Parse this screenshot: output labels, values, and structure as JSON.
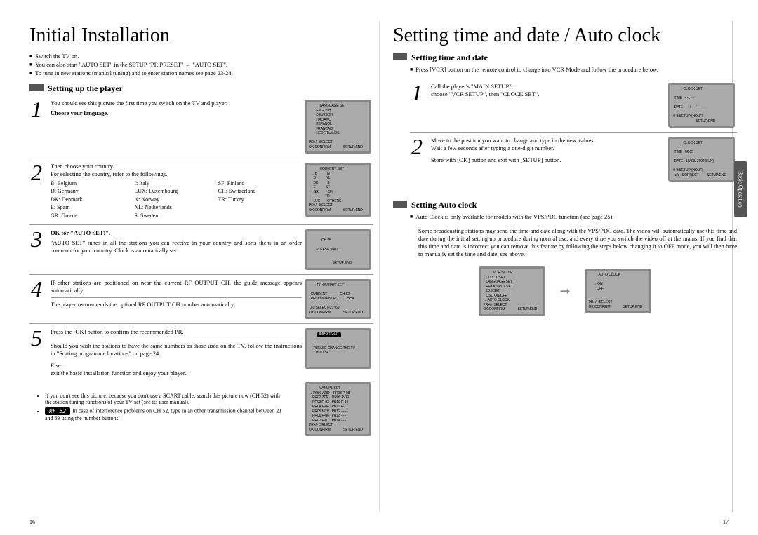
{
  "left": {
    "title": "Initial Installation",
    "bullets": [
      "Switch the TV on.",
      "You can also start \"AUTO SET\" in the SETUP \"PR PRESET\"  →  \"AUTO SET\".",
      "To tune in new stations (manual tuning) and to enter station names see page 23-24."
    ],
    "section": "Setting up the player",
    "steps": [
      {
        "num": "1",
        "body": "You should see this picture the first time you switch on the TV and player.",
        "bold": "Choose your language.",
        "screen": "            LANGUAGE SET\n        ENGLISH\n        DEUTSCH\n        ITALIANO\n        ESPANOL\n        FRANÇAIS\n        NEDERLANDS\n\nPR+/- :SELECT\nOK:CONFIRM              SETUP:END"
      },
      {
        "num": "2",
        "body": "Then choose your country.\nFor selecting the country, refer to the followings.",
        "countries": {
          "c1": [
            "B: Belgium",
            "D: Germany",
            "DK: Denmark",
            "E: Spain",
            "GR: Greece"
          ],
          "c2": [
            "I: Italy",
            "LUX: Luxembourg",
            "N: Norway",
            "NL: Netherlands",
            "S: Sweden"
          ],
          "c3": [
            "SF: Finland",
            "CH: Switzerland",
            "TR: Turkey"
          ]
        },
        "screen": "            COUNTRY SET\n  → B           N\n     D           NL\n     DK          S\n     E           SF\n     GR          CH\n     I            TR\n     LUX        OTHERS\nPR+/- :SELECT\nOK:CONFIRM              SETUP:END"
      },
      {
        "num": "3",
        "bold": "OK for \"AUTO SET!\".",
        "body": "\"AUTO SET\" tunes in all the stations you can receive in your country and sorts them in an order common for your country. Clock is automatically set.",
        "screen": "\n              CH 25\n\n        PLEASE WAIT...\n\n\n                          SETUP:END"
      },
      {
        "num": "4",
        "body": "If other stations are positioned on near the current RF OUTPUT CH, the guide message appears automatically.",
        "body2": "The player recommends the optimal RF OUTPUT CH number automatically.",
        "screen": "         RF OUTPUT SET\n\n  CURRENT              CH 52\n  RECOMMENDED       CH 54\n\n 0-9:SELECT(21~69)\nOK:CONFIRM              SETUP:END"
      },
      {
        "num": "5",
        "body": "Press the [OK] button to confirm the recommended PR.",
        "body2": "Should you wish the stations to have the same numbers as those used on the TV, follow the instructions in \"Sorting programme locations\" on page 24.",
        "body3": "Else ...\nexit the basic installation function and enjoy your player.",
        "screen_has_badge": true,
        "screen": "\n\n     PLEASE CHANGE THE TV\n     CH TO 54.\n\n"
      }
    ],
    "extra_screen": "           MANUAL SET\n→ PR01 ARD    PR08 P-08\n    PR02 ZDF    PR09 P-09\n    PR03 P-03   PR10 P-10\n    PR04 P-04   PR11 P-11\n    PR05 MTV   PR12 - - -\n    PR06 P-06   PR13 - - -\n    PR07 P-07   PR14 - - -\nPR+/- :SELECT\nOK:CONFIRM              SETUP:END",
    "notes": {
      "n1": "If you don't see this picture, because you don't use a SCART cable, search this picture now (CH 52) with the station tuning functions of your TV set (see its user manual).",
      "rf": "RF 52",
      "n2": "In case of interference problems on CH 52, type in an other transmission channel between 21 and 69 using the number buttons."
    },
    "page_num": "16"
  },
  "right": {
    "title": "Setting time and date / Auto clock",
    "sec1": "Setting time and date",
    "b1": "Press [VCR] button on the remote control to change into VCR Mode and follow the procedure below.",
    "steps": [
      {
        "num": "1",
        "body": "Call the player's \"MAIN SETUP\",\nchoose \"VCR SETUP\", then \"CLOCK SET\".",
        "screen": "            CLOCK SET\n\n  TIME   - - : - -\n\n  DATE   - - / - - / - - - -\n\n 0-9:SETUP (HOUR)\n                          SETUP:END"
      },
      {
        "num": "2",
        "body": "Move to the position you want to change and type in the new values.\nWait a few seconds after typing a one-digit number.",
        "body2": "Store with [OK] button and exit with [SETUP] button.",
        "screen": "            CLOCK SET\n\n  TIME   06:05\n\n  DATE   10/ 03/ 2002(SUN)\n\n 0-9:SETUP (HOUR)\n ◄/►:CORRECT         SETUP:END"
      }
    ],
    "sec2": "Setting Auto clock",
    "b2": "Auto Clock is only available for models with the VPS/PDC function (see page 25).",
    "para": "Some broadcasting stations may send the time and date along with the VPS/PDC data. The video will automatically use this time and date during the initial setting up procedure during normal use, and every time you switch the video off at the mains. If you find that this time and date is incorrect you can remove this feature by following the steps below changing it to OFF mode, you will then have to manually set the time and date, see above.",
    "screen1": "           VCR SETUP\n   CLOCK SET\n   LANGUAGE SET\n   RF OUTPUT SET\n   16:9 SET\n   OSD ON/OFF\n→ AUTO CLOCK\nPR+/- :SELECT\nOK:CONFIRM              SETUP:END",
    "screen2": "           AUTO CLOCK\n\n     → ON\n         OFF\n\n\nPR+/- :SELECT\nOK:CONFIRM              SETUP:END",
    "page_num": "17",
    "tab": "Basic Operation"
  }
}
